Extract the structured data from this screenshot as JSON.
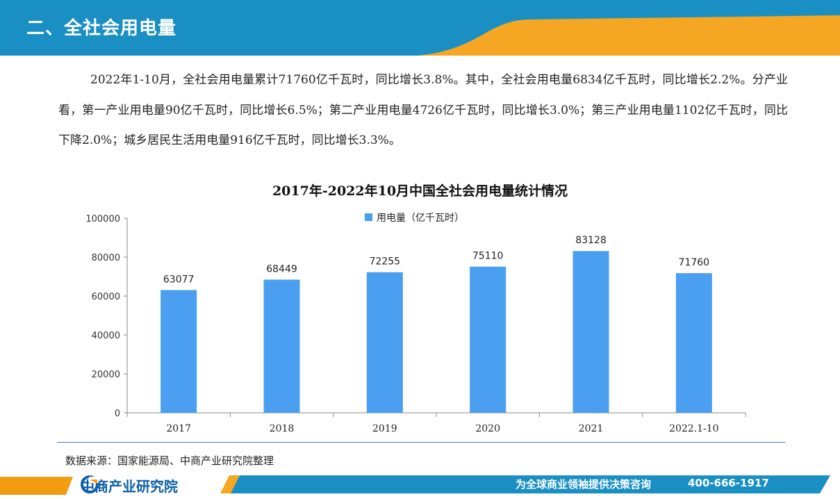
{
  "header": {
    "title": "二、全社会用电量"
  },
  "intro": {
    "text": "2022年1-10月，全社会用电量累计71760亿千瓦时，同比增长3.8%。其中，全社会用电量6834亿千瓦时，同比增长2.2%。分产业看，第一产业用电量90亿千瓦时，同比增长6.5%；第二产业用电量4726亿千瓦时，同比增长3.0%；第三产业用电量1102亿千瓦时，同比下降2.0%；城乡居民生活用电量916亿千瓦时，同比增长3.3%。"
  },
  "chart_data": {
    "type": "bar",
    "title": "2017年-2022年10月中国全社会用电量统计情况",
    "categories": [
      "2017",
      "2018",
      "2019",
      "2020",
      "2021",
      "2022.1-10"
    ],
    "series": [
      {
        "name": "用电量（亿千瓦时）",
        "values": [
          63077,
          68449,
          72255,
          75110,
          83128,
          71760
        ]
      }
    ],
    "yticks": [
      "100000",
      "80000",
      "60000",
      "40000",
      "20000",
      "0"
    ],
    "ylim": [
      0,
      100000
    ],
    "xlabel": "",
    "ylabel": "",
    "grid": false,
    "legend": "top-center",
    "bar_color": "#4a9ff0"
  },
  "source": {
    "text": "数据来源：国家能源局、中商产业研究院整理"
  },
  "footer": {
    "logo_text": "中商产业研究院",
    "slogan": "为全球商业领袖提供决策咨询",
    "phone": "400-666-1917"
  },
  "colors": {
    "header_blue": "#1a8fc4",
    "header_orange": "#f5a623",
    "footer_blue": "#1a8fc4",
    "accent_orange": "#f39c12"
  }
}
